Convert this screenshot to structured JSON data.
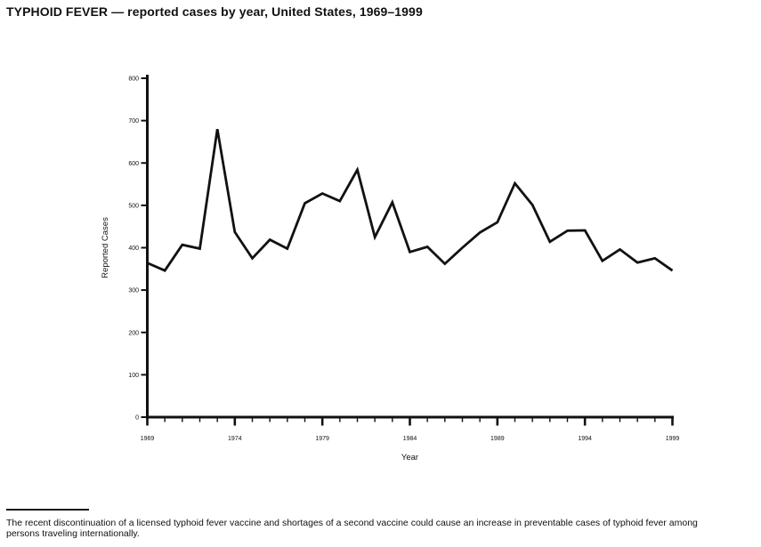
{
  "title": "TYPHOID FEVER — reported cases by year, United States, 1969–1999",
  "footnote": {
    "lines": [
      "The recent discontinuation of a licensed typhoid fever vaccine and shortages of a second vaccine could cause an increase in preventable cases of typhoid fever among",
      "persons traveling internationally."
    ]
  },
  "colors": {
    "background": "#ffffff",
    "line": "#111111",
    "axis": "#111111",
    "text": "#111111"
  },
  "chart_data": {
    "type": "line",
    "title": "TYPHOID FEVER — reported cases by year, United States, 1969–1999",
    "xlabel": "Year",
    "ylabel": "Reported Cases",
    "xlim": [
      1969,
      1999
    ],
    "ylim": [
      0,
      800
    ],
    "x_major_ticks": [
      1969,
      1974,
      1979,
      1984,
      1989,
      1994,
      1999
    ],
    "x_minor_tick_interval": 1,
    "y_ticks": [
      0,
      100,
      200,
      300,
      400,
      500,
      600,
      700,
      800
    ],
    "grid": false,
    "legend": "none",
    "series": [
      {
        "name": "Reported cases",
        "x": [
          1969,
          1970,
          1971,
          1972,
          1973,
          1974,
          1975,
          1976,
          1977,
          1978,
          1979,
          1980,
          1981,
          1982,
          1983,
          1984,
          1985,
          1986,
          1987,
          1988,
          1989,
          1990,
          1991,
          1992,
          1993,
          1994,
          1995,
          1996,
          1997,
          1998,
          1999
        ],
        "values": [
          364,
          346,
          407,
          398,
          680,
          437,
          375,
          419,
          398,
          505,
          528,
          510,
          584,
          425,
          507,
          390,
          402,
          362,
          400,
          436,
          460,
          552,
          501,
          414,
          440,
          441,
          369,
          396,
          365,
          375,
          346
        ]
      }
    ]
  }
}
